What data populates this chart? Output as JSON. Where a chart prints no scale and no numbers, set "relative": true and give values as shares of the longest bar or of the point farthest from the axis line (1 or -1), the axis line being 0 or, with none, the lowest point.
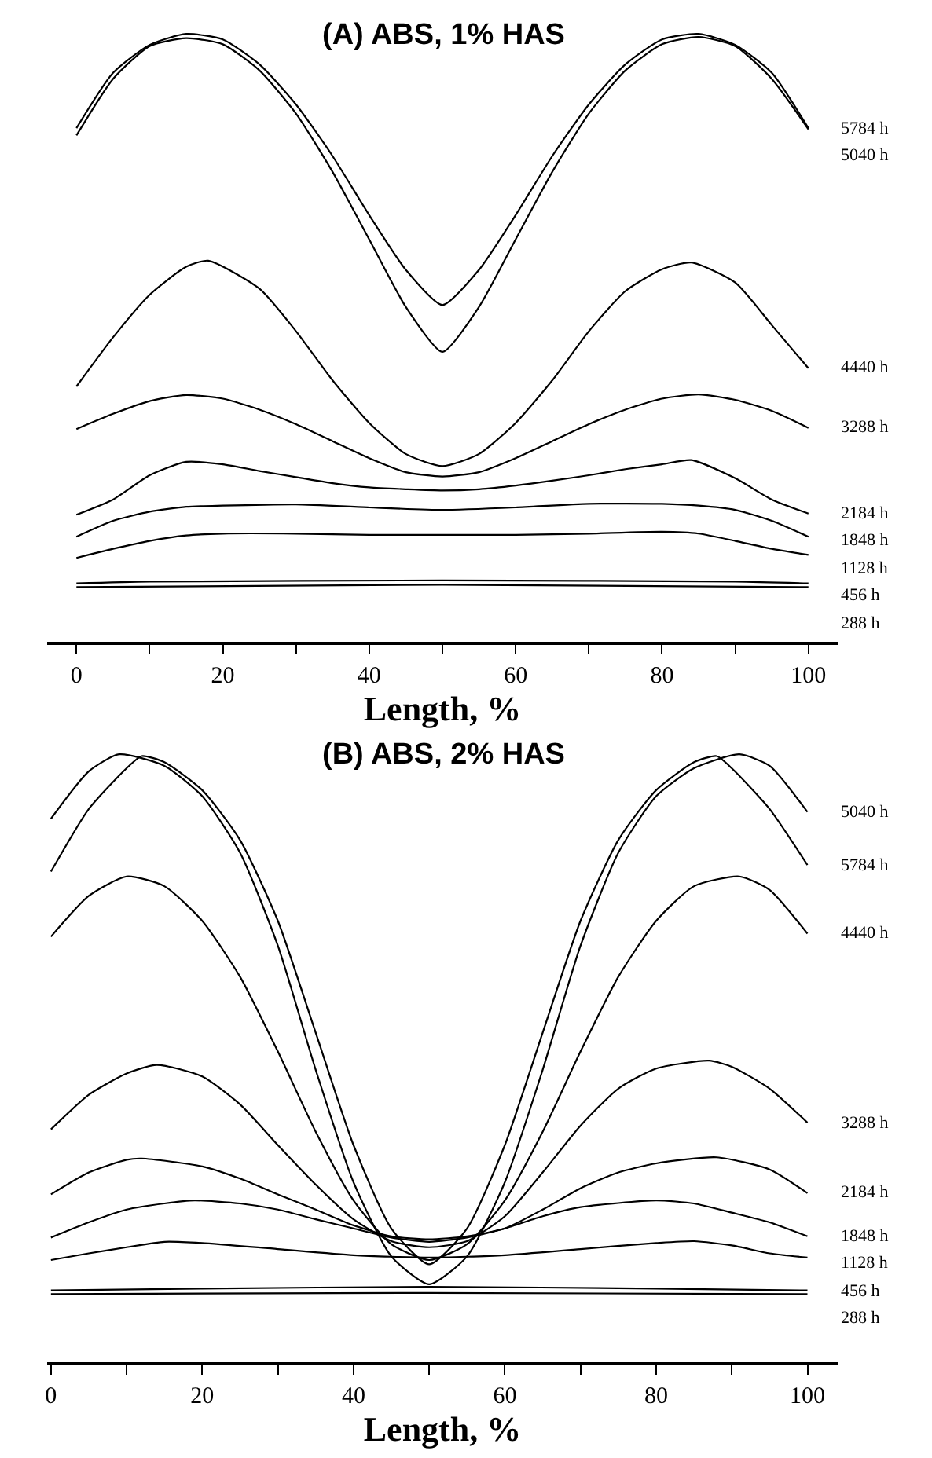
{
  "chart_data": [
    {
      "type": "line",
      "title": "(A) ABS, 1% HAS",
      "xlabel": "Length, %",
      "relative": true,
      "legend": false,
      "marker": "none",
      "line_style": "solid",
      "tick_labels": "x",
      "xlim": [
        -4,
        104
      ],
      "xticks": [
        0,
        {
          "value": 10,
          "label": null
        },
        20,
        {
          "value": 30,
          "label": null
        },
        40,
        {
          "value": 50,
          "label": null
        },
        60,
        {
          "value": 70,
          "label": null
        },
        80,
        {
          "value": 90,
          "label": null
        },
        100
      ],
      "series": [
        {
          "name": "5784 h",
          "color": "#000000",
          "x": [
            0,
            5,
            10,
            15,
            20,
            25,
            30,
            35,
            40,
            45,
            50,
            55,
            60,
            65,
            70,
            75,
            80,
            85,
            90,
            95,
            100
          ],
          "values": [
            0.845,
            0.936,
            0.982,
            1.0,
            0.991,
            0.95,
            0.884,
            0.799,
            0.702,
            0.612,
            0.554,
            0.612,
            0.702,
            0.799,
            0.884,
            0.95,
            0.991,
            1.0,
            0.982,
            0.936,
            0.845
          ]
        },
        {
          "name": "5040 h",
          "color": "#000000",
          "x": [
            0,
            5,
            10,
            15,
            20,
            25,
            30,
            35,
            40,
            45,
            50,
            55,
            60,
            65,
            70,
            75,
            80,
            85,
            90,
            95,
            100
          ],
          "values": [
            0.833,
            0.926,
            0.98,
            0.993,
            0.983,
            0.94,
            0.869,
            0.773,
            0.662,
            0.551,
            0.477,
            0.551,
            0.662,
            0.773,
            0.869,
            0.94,
            0.983,
            0.995,
            0.98,
            0.926,
            0.843
          ]
        },
        {
          "name": "4440 h",
          "color": "#000000",
          "x": [
            0,
            5,
            10,
            15,
            18,
            25,
            30,
            35,
            40,
            45,
            50,
            55,
            60,
            65,
            70,
            75,
            80,
            84,
            90,
            95,
            100
          ],
          "values": [
            0.42,
            0.501,
            0.571,
            0.617,
            0.627,
            0.581,
            0.511,
            0.43,
            0.36,
            0.309,
            0.289,
            0.309,
            0.36,
            0.43,
            0.511,
            0.577,
            0.613,
            0.624,
            0.591,
            0.521,
            0.45
          ]
        },
        {
          "name": "3288 h",
          "color": "#000000",
          "x": [
            0,
            5,
            10,
            15,
            20,
            25,
            30,
            35,
            40,
            45,
            50,
            55,
            60,
            65,
            70,
            75,
            80,
            85,
            90,
            95,
            100
          ],
          "values": [
            0.35,
            0.375,
            0.396,
            0.406,
            0.4,
            0.382,
            0.358,
            0.33,
            0.302,
            0.279,
            0.272,
            0.279,
            0.302,
            0.33,
            0.358,
            0.382,
            0.4,
            0.407,
            0.398,
            0.38,
            0.352
          ]
        },
        {
          "name": "2184 h",
          "color": "#000000",
          "x": [
            0,
            5,
            10,
            15,
            20,
            25,
            30,
            35,
            40,
            45,
            50,
            55,
            60,
            65,
            70,
            75,
            80,
            84,
            90,
            95,
            100
          ],
          "values": [
            0.209,
            0.234,
            0.274,
            0.296,
            0.292,
            0.281,
            0.271,
            0.261,
            0.254,
            0.251,
            0.249,
            0.251,
            0.257,
            0.265,
            0.274,
            0.284,
            0.292,
            0.299,
            0.269,
            0.234,
            0.211
          ]
        },
        {
          "name": "1848 h",
          "color": "#000000",
          "x": [
            0,
            5,
            10,
            15,
            20,
            30,
            40,
            50,
            60,
            70,
            80,
            85,
            90,
            95,
            100
          ],
          "values": [
            0.173,
            0.199,
            0.214,
            0.222,
            0.224,
            0.226,
            0.221,
            0.217,
            0.221,
            0.227,
            0.227,
            0.224,
            0.217,
            0.199,
            0.173
          ]
        },
        {
          "name": "1128 h",
          "color": "#000000",
          "x": [
            0,
            5,
            10,
            15,
            20,
            30,
            40,
            50,
            60,
            70,
            80,
            85,
            90,
            95,
            100
          ],
          "values": [
            0.138,
            0.153,
            0.166,
            0.175,
            0.178,
            0.178,
            0.176,
            0.176,
            0.176,
            0.178,
            0.181,
            0.178,
            0.166,
            0.153,
            0.143
          ]
        },
        {
          "name": "456 h",
          "color": "#000000",
          "x": [
            0,
            10,
            50,
            90,
            100
          ],
          "values": [
            0.096,
            0.099,
            0.101,
            0.099,
            0.096
          ]
        },
        {
          "name": "288 h",
          "color": "#000000",
          "x": [
            0,
            50,
            100
          ],
          "values": [
            0.09,
            0.094,
            0.09
          ]
        }
      ]
    },
    {
      "type": "line",
      "title": "(B) ABS, 2% HAS",
      "xlabel": "Length, %",
      "relative": true,
      "legend": false,
      "marker": "none",
      "line_style": "solid",
      "tick_labels": "x",
      "xlim": [
        -0.5,
        104
      ],
      "xticks": [
        0,
        {
          "value": 10,
          "label": null
        },
        20,
        {
          "value": 30,
          "label": null
        },
        40,
        {
          "value": 50,
          "label": null
        },
        60,
        {
          "value": 70,
          "label": null
        },
        80,
        {
          "value": 90,
          "label": null
        },
        100
      ],
      "series": [
        {
          "name": "5040 h",
          "color": "#000000",
          "x": [
            0,
            5,
            9,
            15,
            20,
            25,
            30,
            35,
            40,
            45,
            50,
            55,
            60,
            65,
            70,
            75,
            80,
            85,
            91,
            95,
            100
          ],
          "values": [
            0.894,
            0.972,
            1.0,
            0.981,
            0.931,
            0.838,
            0.685,
            0.481,
            0.296,
            0.174,
            0.128,
            0.174,
            0.296,
            0.481,
            0.685,
            0.838,
            0.931,
            0.977,
            1.0,
            0.981,
            0.905
          ]
        },
        {
          "name": "5784 h",
          "color": "#000000",
          "x": [
            0,
            5,
            10,
            12,
            15,
            20,
            25,
            30,
            35,
            40,
            45,
            50,
            55,
            60,
            65,
            70,
            75,
            80,
            85,
            88,
            90,
            95,
            100
          ],
          "values": [
            0.807,
            0.91,
            0.977,
            0.997,
            0.987,
            0.941,
            0.859,
            0.726,
            0.542,
            0.357,
            0.22,
            0.161,
            0.22,
            0.357,
            0.542,
            0.726,
            0.859,
            0.941,
            0.987,
            0.997,
            0.977,
            0.91,
            0.818
          ]
        },
        {
          "name": "4440 h",
          "color": "#000000",
          "x": [
            0,
            5,
            10,
            15,
            20,
            25,
            30,
            35,
            40,
            45,
            50,
            55,
            60,
            65,
            70,
            75,
            80,
            85,
            91,
            95,
            100
          ],
          "values": [
            0.7,
            0.767,
            0.799,
            0.783,
            0.726,
            0.634,
            0.511,
            0.379,
            0.266,
            0.194,
            0.168,
            0.194,
            0.266,
            0.379,
            0.511,
            0.634,
            0.726,
            0.783,
            0.799,
            0.777,
            0.705
          ]
        },
        {
          "name": "3288 h",
          "color": "#000000",
          "x": [
            0,
            5,
            10,
            14,
            20,
            25,
            30,
            35,
            40,
            45,
            50,
            55,
            60,
            65,
            70,
            75,
            80,
            87,
            90,
            95,
            100
          ],
          "values": [
            0.383,
            0.44,
            0.475,
            0.489,
            0.47,
            0.424,
            0.357,
            0.292,
            0.235,
            0.199,
            0.189,
            0.199,
            0.24,
            0.312,
            0.389,
            0.45,
            0.483,
            0.496,
            0.486,
            0.45,
            0.394
          ]
        },
        {
          "name": "2184 h",
          "color": "#000000",
          "x": [
            0,
            5,
            10,
            12,
            20,
            25,
            30,
            35,
            40,
            45,
            50,
            55,
            60,
            65,
            70,
            75,
            80,
            88,
            95,
            100
          ],
          "values": [
            0.276,
            0.312,
            0.333,
            0.335,
            0.322,
            0.302,
            0.276,
            0.251,
            0.225,
            0.207,
            0.202,
            0.207,
            0.22,
            0.251,
            0.286,
            0.312,
            0.327,
            0.337,
            0.317,
            0.278
          ]
        },
        {
          "name": "1848 h",
          "color": "#000000",
          "x": [
            0,
            5,
            10,
            15,
            19,
            25,
            30,
            35,
            40,
            45,
            50,
            55,
            60,
            65,
            70,
            80,
            85,
            90,
            95,
            100
          ],
          "values": [
            0.205,
            0.23,
            0.251,
            0.261,
            0.266,
            0.261,
            0.251,
            0.235,
            0.22,
            0.205,
            0.198,
            0.205,
            0.22,
            0.24,
            0.255,
            0.266,
            0.261,
            0.246,
            0.23,
            0.207
          ]
        },
        {
          "name": "1128 h",
          "color": "#000000",
          "x": [
            0,
            5,
            10,
            15,
            20,
            30,
            40,
            50,
            60,
            70,
            80,
            85,
            90,
            95,
            100
          ],
          "values": [
            0.168,
            0.179,
            0.189,
            0.198,
            0.196,
            0.186,
            0.176,
            0.172,
            0.176,
            0.186,
            0.196,
            0.199,
            0.192,
            0.179,
            0.172
          ]
        },
        {
          "name": "456 h",
          "color": "#000000",
          "x": [
            0,
            20,
            50,
            80,
            100
          ],
          "values": [
            0.118,
            0.121,
            0.124,
            0.121,
            0.118
          ]
        },
        {
          "name": "288 h",
          "color": "#000000",
          "x": [
            0,
            50,
            100
          ],
          "values": [
            0.112,
            0.114,
            0.112
          ]
        }
      ]
    }
  ]
}
